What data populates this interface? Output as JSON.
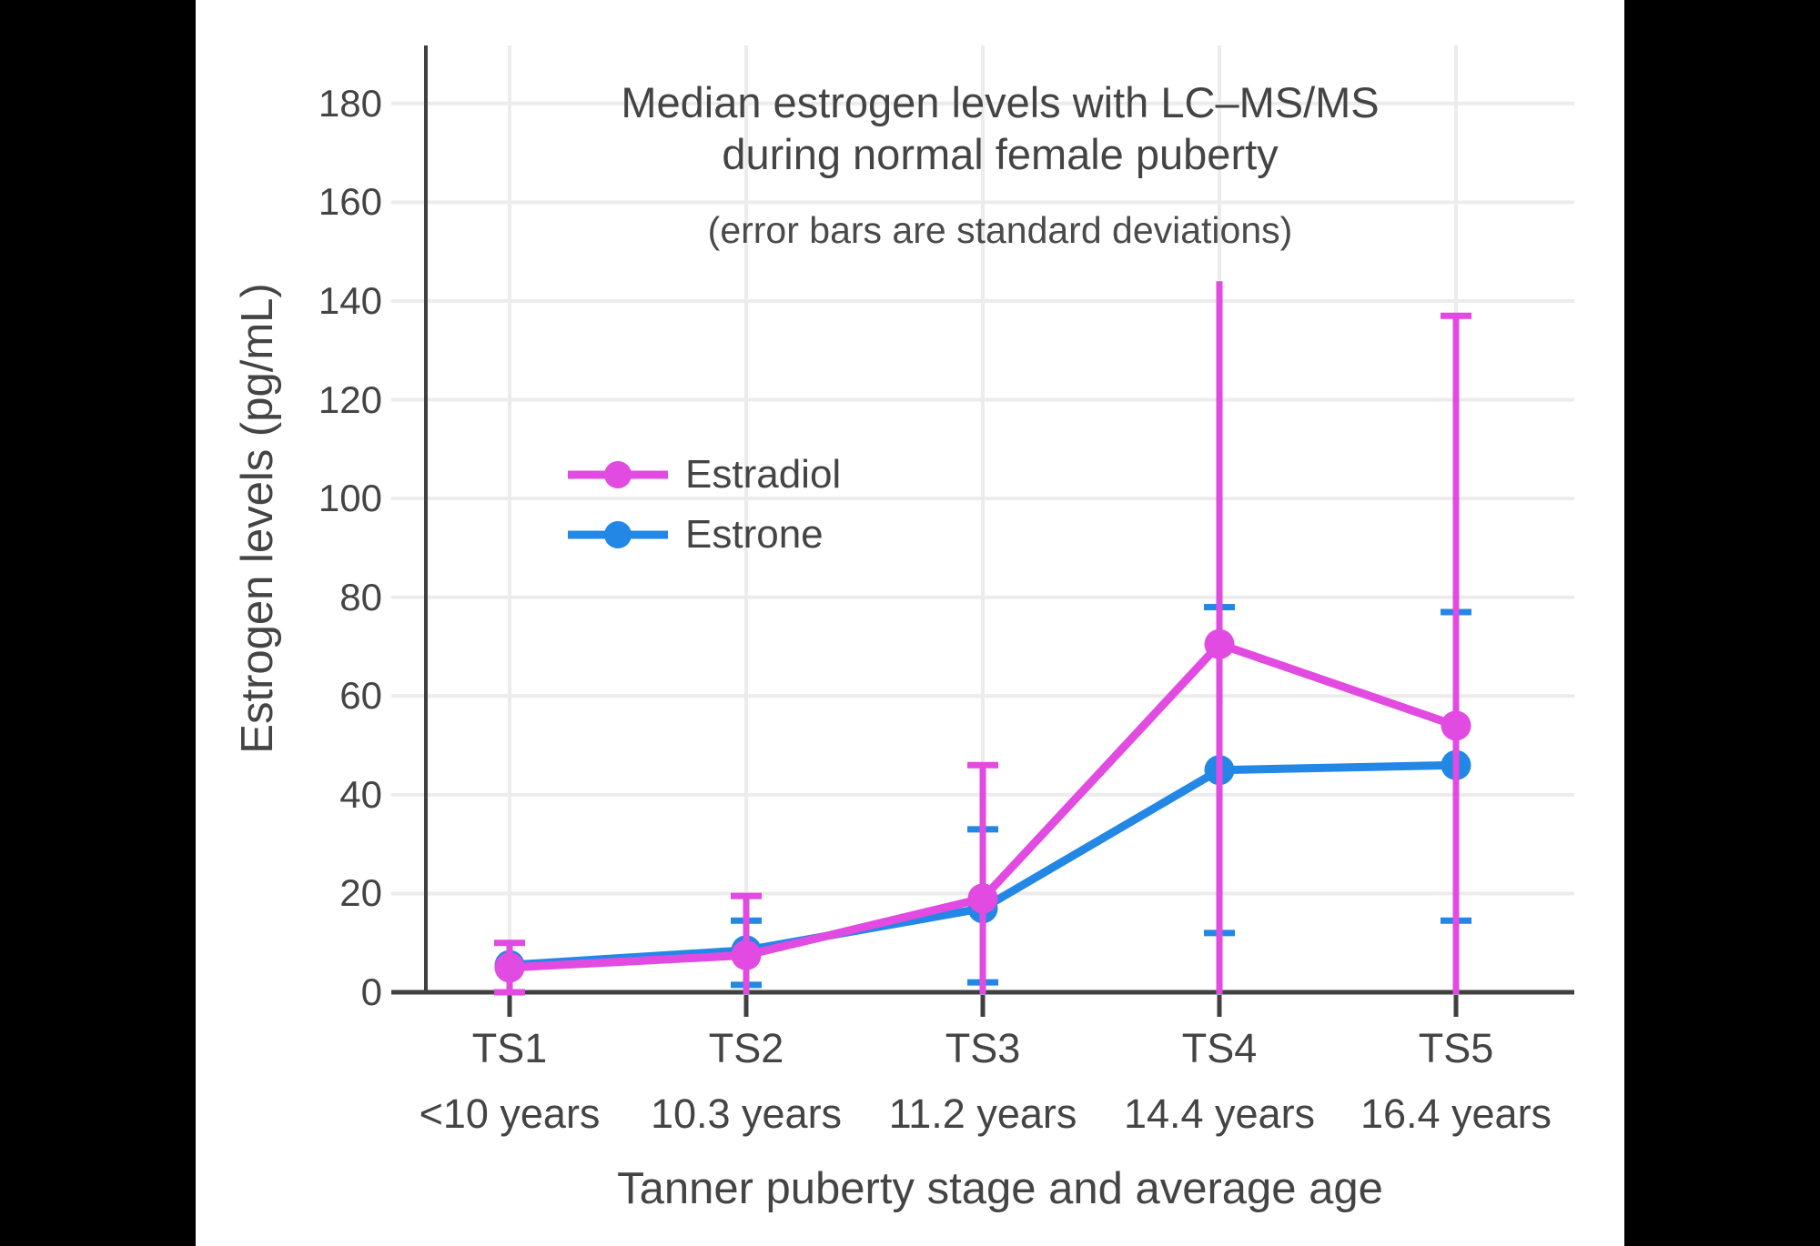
{
  "page": {
    "background": "#000000",
    "panel_background": "#ffffff",
    "text_color": "#444444"
  },
  "chart_data": {
    "type": "line",
    "title_line1": "Median estrogen levels with LC–MS/MS",
    "title_line2": "during normal female puberty",
    "subtitle": "(error bars are standard deviations)",
    "xlabel": "Tanner puberty stage and average age",
    "ylabel": "Estrogen levels (pg/mL)",
    "categories": [
      "TS1",
      "TS2",
      "TS3",
      "TS4",
      "TS5"
    ],
    "category_sublabels": [
      "<10 years",
      "10.3 years",
      "11.2 years",
      "14.4 years",
      "16.4 years"
    ],
    "y_ticks": [
      0,
      20,
      40,
      60,
      80,
      100,
      120,
      140,
      160,
      180
    ],
    "ylim": [
      0,
      191
    ],
    "grid": true,
    "grid_color": "#ececec",
    "axis_color": "#404040",
    "legend": {
      "position": "inside-upper-left",
      "items": [
        "Estradiol",
        "Estrone"
      ]
    },
    "series": [
      {
        "name": "Estradiol",
        "color": "#E24BE1",
        "values": [
          5,
          7.5,
          19,
          70.5,
          54
        ],
        "error_top": [
          10,
          19.5,
          46,
          144,
          137
        ],
        "error_bottom": [
          0,
          0,
          0,
          0,
          0
        ],
        "top_cap": [
          true,
          true,
          true,
          false,
          true
        ],
        "bottom_cap": [
          true,
          false,
          false,
          false,
          false
        ]
      },
      {
        "name": "Estrone",
        "color": "#2387E6",
        "values": [
          5.5,
          8.5,
          17,
          45,
          46
        ],
        "error_top": [
          null,
          14.5,
          33,
          78,
          77
        ],
        "error_bottom": [
          null,
          1.5,
          2,
          12,
          14.5
        ],
        "top_cap": [
          false,
          true,
          true,
          true,
          true
        ],
        "bottom_cap": [
          false,
          true,
          true,
          true,
          true
        ]
      }
    ]
  }
}
